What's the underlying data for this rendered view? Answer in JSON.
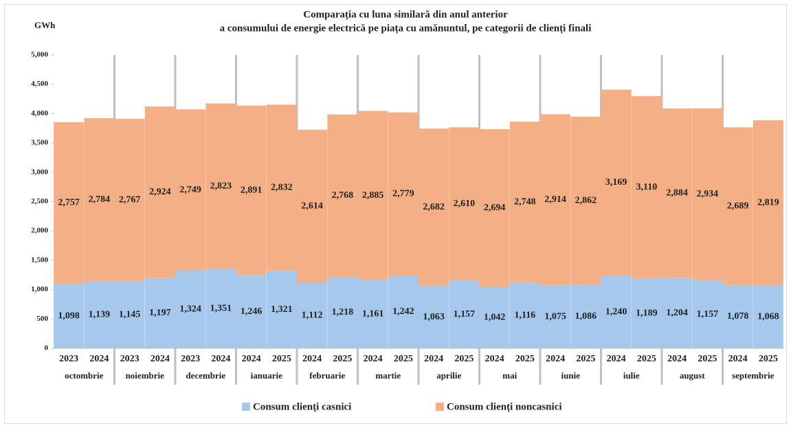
{
  "chart_data": {
    "type": "stacked_bar",
    "title": [
      "Comparația cu luna similară din anul anterior",
      "a consumului de energie electrică pe piața cu amănuntul, pe categorii de clienți finali"
    ],
    "y_label": "GWh",
    "categories": [
      "2023",
      "2024",
      "2023",
      "2024",
      "2023",
      "2024",
      "2024",
      "2025",
      "2024",
      "2025",
      "2024",
      "2025",
      "2024",
      "2025",
      "2024",
      "2025",
      "2024",
      "2025",
      "2024",
      "2025",
      "2024",
      "2025",
      "2024",
      "2025"
    ],
    "groups": [
      "octombrie",
      "noiembrie",
      "decembrie",
      "ianuarie",
      "februarie",
      "martie",
      "aprilie",
      "mai",
      "iunie",
      "iulie",
      "august",
      "septembrie"
    ],
    "series": [
      {
        "name": "Consum clienți casnici",
        "color": "#a6c8ec",
        "values": [
          1098,
          1139,
          1145,
          1197,
          1324,
          1351,
          1246,
          1321,
          1112,
          1218,
          1161,
          1242,
          1063,
          1157,
          1042,
          1116,
          1075,
          1086,
          1240,
          1189,
          1204,
          1157,
          1078,
          1068
        ],
        "value_labels": [
          "1,098",
          "1,139",
          "1,145",
          "1,197",
          "1,324",
          "1,351",
          "1,246",
          "1,321",
          "1,112",
          "1,218",
          "1,161",
          "1,242",
          "1,063",
          "1,157",
          "1,042",
          "1,116",
          "1,075",
          "1,086",
          "1,240",
          "1,189",
          "1,204",
          "1,157",
          "1,078",
          "1,068"
        ]
      },
      {
        "name": "Consum clienți noncasnici",
        "color": "#f4b084",
        "values": [
          2757,
          2784,
          2767,
          2924,
          2749,
          2823,
          2891,
          2832,
          2614,
          2768,
          2885,
          2779,
          2682,
          2610,
          2694,
          2748,
          2914,
          2862,
          3169,
          3110,
          2884,
          2934,
          2689,
          2819
        ],
        "value_labels": [
          "2,757",
          "2,784",
          "2,767",
          "2,924",
          "2,749",
          "2,823",
          "2,891",
          "2,832",
          "2,614",
          "2,768",
          "2,885",
          "2,779",
          "2,682",
          "2,610",
          "2,694",
          "2,748",
          "2,914",
          "2,862",
          "3,169",
          "3,110",
          "2,884",
          "2,934",
          "2,689",
          "2,819"
        ]
      }
    ],
    "ylim": [
      0,
      5000
    ],
    "yticks": [
      0,
      500,
      {
        "value": 1000,
        "label": "1,000"
      },
      {
        "value": 1500,
        "label": "1,500"
      },
      {
        "value": 2000,
        "label": "2,000"
      },
      {
        "value": 2500,
        "label": "2,500"
      },
      {
        "value": 3000,
        "label": "3,000"
      },
      {
        "value": 3500,
        "label": "3,500"
      },
      {
        "value": 4000,
        "label": "4,000"
      },
      {
        "value": 4500,
        "label": "4,500"
      },
      {
        "value": 5000,
        "label": "5,000"
      }
    ],
    "legend": "bottom"
  }
}
